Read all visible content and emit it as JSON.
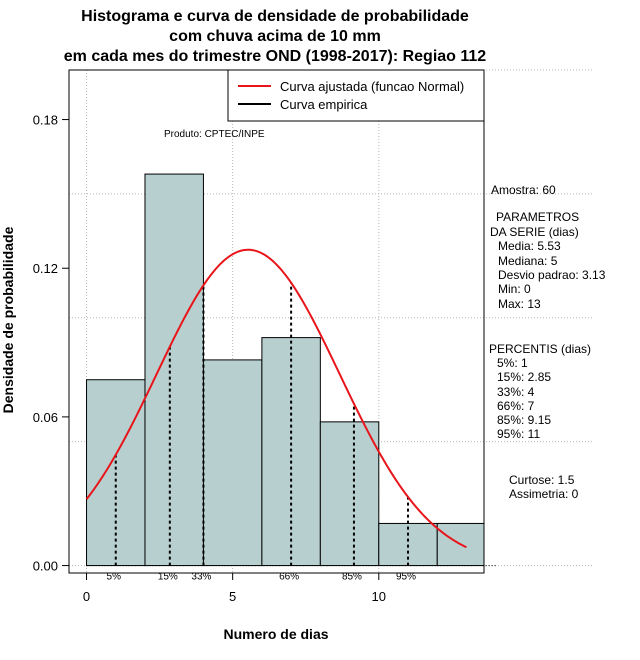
{
  "chart_data": {
    "type": "histogram",
    "title": [
      "Histograma e curva de densidade de probabilidade",
      "com chuva acima de 10 mm",
      "em cada mes do trimestre OND (1998-2017): Regiao 112"
    ],
    "xlabel": "Numero de dias",
    "ylabel": "Densidade de probabilidade",
    "xlim": [
      -0.6,
      13.6
    ],
    "ylim": [
      -0.003,
      0.2
    ],
    "xticks": [
      0,
      5,
      10
    ],
    "yticks": [
      0.0,
      0.06,
      0.12,
      0.18
    ],
    "ytick_labels": [
      "0.00",
      "0.06",
      "0.12",
      "0.18"
    ],
    "bins": [
      {
        "from": 0,
        "to": 2,
        "density": 0.075
      },
      {
        "from": 2,
        "to": 4,
        "density": 0.158
      },
      {
        "from": 4,
        "to": 6,
        "density": 0.083
      },
      {
        "from": 6,
        "to": 8,
        "density": 0.092
      },
      {
        "from": 8,
        "to": 10,
        "density": 0.058
      },
      {
        "from": 10,
        "to": 12,
        "density": 0.017
      },
      {
        "from": 12,
        "to": 14,
        "density": 0.017
      }
    ],
    "normal_fit": {
      "mean": 5.53,
      "sd": 3.13,
      "x_range": [
        0,
        13
      ],
      "color": "#e8151b"
    },
    "percentile_lines": [
      {
        "label": "5%",
        "x": 1
      },
      {
        "label": "15%",
        "x": 2.85
      },
      {
        "label": "33%",
        "x": 4
      },
      {
        "label": "66%",
        "x": 7
      },
      {
        "label": "85%",
        "x": 9.15
      },
      {
        "label": "95%",
        "x": 11
      }
    ],
    "legend": [
      {
        "label": "Curva ajustada (funcao Normal)",
        "color": "#e8151b"
      },
      {
        "label": "Curva empirica",
        "color": "#000000"
      }
    ],
    "annotation": "Produto: CPTEC/INPE",
    "bar_color": "#b7d0cf",
    "grid": true
  },
  "side_panel": {
    "amostra": "Amostra: 60",
    "parametros_title": [
      "PARAMETROS",
      "DA SERIE (dias)"
    ],
    "parametros": [
      "Media: 5.53",
      "Mediana: 5",
      "Desvio padrao: 3.13",
      "Min: 0",
      "Max: 13"
    ],
    "percentis_title": "PERCENTIS (dias)",
    "percentis": [
      "5%: 1",
      "15%: 2.85",
      "33%: 4",
      "66%: 7",
      "85%: 9.15",
      "95%: 11"
    ],
    "curtose": "Curtose: 1.5",
    "assimetria": "Assimetria: 0"
  }
}
